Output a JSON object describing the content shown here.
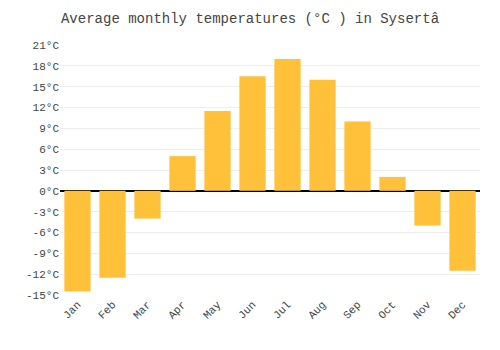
{
  "chart_data": {
    "type": "bar",
    "title": "Average monthly temperatures (°C ) in Sysertâ",
    "categories": [
      "Jan",
      "Feb",
      "Mar",
      "Apr",
      "May",
      "Jun",
      "Jul",
      "Aug",
      "Sep",
      "Oct",
      "Nov",
      "Dec"
    ],
    "values": [
      -14.5,
      -12.5,
      -4.0,
      5.0,
      11.5,
      16.5,
      19.0,
      16.0,
      10.0,
      2.0,
      -5.0,
      -11.5
    ],
    "color": "#FFC03A",
    "ylim": [
      -15,
      21
    ],
    "yticks": [
      {
        "value": -15,
        "label": "-15°C"
      },
      {
        "value": -12,
        "label": "-12°C"
      },
      {
        "value": -9,
        "label": "-9°C"
      },
      {
        "value": -6,
        "label": "-6°C"
      },
      {
        "value": -3,
        "label": "-3°C"
      },
      {
        "value": 0,
        "label": "0°C"
      },
      {
        "value": 3,
        "label": "3°C"
      },
      {
        "value": 6,
        "label": "6°C"
      },
      {
        "value": 9,
        "label": "9°C"
      },
      {
        "value": 12,
        "label": "12°C"
      },
      {
        "value": 15,
        "label": "15°C"
      },
      {
        "value": 18,
        "label": "18°C"
      },
      {
        "value": 21,
        "label": "21°C"
      }
    ],
    "grid": true
  }
}
